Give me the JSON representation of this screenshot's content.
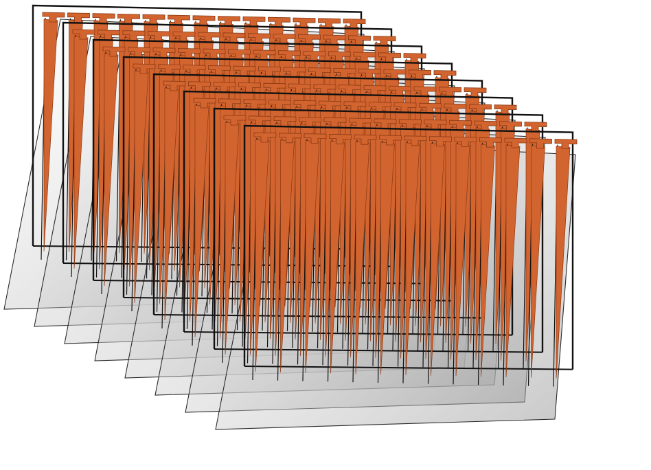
{
  "diagram": {
    "grid_rows": 8,
    "grid_columns": 13,
    "colors": {
      "background": "#ffffff",
      "fin_fill": "#d2642f",
      "fin_stroke": "#8a3a14",
      "frame_stroke": "#111111",
      "plane_fill": "#c9c9c9",
      "plane_stroke": "#2a2a2a"
    }
  }
}
